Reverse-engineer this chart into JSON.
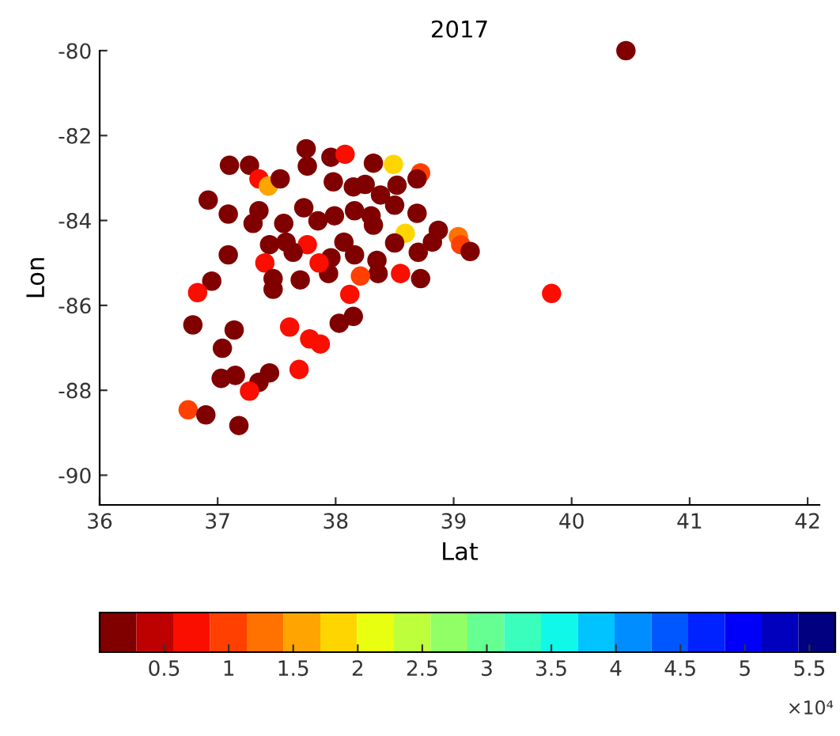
{
  "chart_data": {
    "type": "scatter",
    "title": "2017",
    "xlabel": "Lat",
    "ylabel": "Lon",
    "xlim": [
      36,
      42.1
    ],
    "ylim": [
      -90.7,
      -80
    ],
    "xticks": [
      36,
      37,
      38,
      39,
      40,
      41,
      42
    ],
    "yticks": [
      -90,
      -88,
      -86,
      -84,
      -82,
      -80
    ],
    "clim": [
      0,
      5.7
    ],
    "cticks": [
      0.5,
      1,
      1.5,
      2,
      2.5,
      3,
      3.5,
      4,
      4.5,
      5,
      5.5
    ],
    "annotations": [
      "×10⁴"
    ],
    "grid": false,
    "marker": "circle",
    "series": [
      {
        "x": [
          40.46,
          39.83,
          37.75,
          37.76,
          37.96,
          38.08,
          37.98,
          38.32,
          38.49,
          38.72,
          38.69,
          37.1,
          37.27,
          37.35,
          37.43,
          37.53,
          36.92,
          37.09,
          37.35,
          37.3,
          37.73,
          37.56,
          37.85,
          37.99,
          38.15,
          38.25,
          38.38,
          38.52,
          38.5,
          38.16,
          38.3,
          38.32,
          38.69,
          38.59,
          38.5,
          38.87,
          39.04,
          39.06,
          39.14,
          38.82,
          38.7,
          38.72,
          38.55,
          38.36,
          38.35,
          38.21,
          38.12,
          38.15,
          38.03,
          38.16,
          38.07,
          37.96,
          37.94,
          37.86,
          37.76,
          37.64,
          37.58,
          37.44,
          37.4,
          37.47,
          37.47,
          37.7,
          37.09,
          36.95,
          36.83,
          36.79,
          37.14,
          37.04,
          37.03,
          37.15,
          37.35,
          37.44,
          37.27,
          37.61,
          37.78,
          37.87,
          37.69,
          36.75,
          36.9,
          37.18
        ],
        "values": [
          -80.0,
          -85.72,
          -82.31,
          -82.72,
          -82.51,
          -82.44,
          -83.09,
          -82.65,
          -82.68,
          -82.88,
          -83.02,
          -82.7,
          -82.7,
          -83.02,
          -83.19,
          -83.02,
          -83.52,
          -83.85,
          -83.77,
          -84.07,
          -83.7,
          -84.07,
          -84.01,
          -83.89,
          -83.21,
          -83.15,
          -83.4,
          -83.17,
          -83.64,
          -83.77,
          -83.89,
          -84.11,
          -83.83,
          -84.3,
          -84.53,
          -84.23,
          -84.38,
          -84.57,
          -84.73,
          -84.51,
          -84.75,
          -85.37,
          -85.25,
          -85.25,
          -84.94,
          -85.31,
          -85.74,
          -86.26,
          -86.42,
          -84.81,
          -84.51,
          -84.88,
          -85.25,
          -85.0,
          -84.57,
          -84.75,
          -84.51,
          -84.57,
          -85.0,
          -85.37,
          -85.62,
          -85.4,
          -84.81,
          -85.43,
          -85.7,
          -86.46,
          -86.58,
          -87.01,
          -87.72,
          -87.65,
          -87.81,
          -87.59,
          -88.02,
          -86.51,
          -86.79,
          -86.91,
          -87.51,
          -88.46,
          -88.58,
          -88.83
        ],
        "cvalues": [
          0.1,
          0.7,
          0.1,
          0.1,
          0.1,
          0.7,
          0.1,
          0.1,
          1.9,
          1.1,
          0.1,
          0.1,
          0.1,
          0.7,
          1.6,
          0.1,
          0.1,
          0.1,
          0.1,
          0.1,
          0.1,
          0.1,
          0.1,
          0.1,
          0.1,
          0.1,
          0.1,
          0.1,
          0.1,
          0.1,
          0.1,
          0.1,
          0.1,
          1.9,
          0.1,
          0.1,
          1.2,
          1.0,
          0.1,
          0.1,
          0.1,
          0.1,
          0.7,
          0.1,
          0.1,
          1.0,
          0.7,
          0.1,
          0.1,
          0.1,
          0.1,
          0.1,
          0.1,
          0.7,
          0.7,
          0.1,
          0.1,
          0.1,
          0.7,
          0.1,
          0.1,
          0.1,
          0.1,
          0.1,
          0.7,
          0.1,
          0.1,
          0.1,
          0.1,
          0.1,
          0.1,
          0.1,
          0.7,
          0.7,
          0.7,
          0.7,
          0.7,
          1.0,
          0.1,
          0.1
        ]
      }
    ]
  }
}
